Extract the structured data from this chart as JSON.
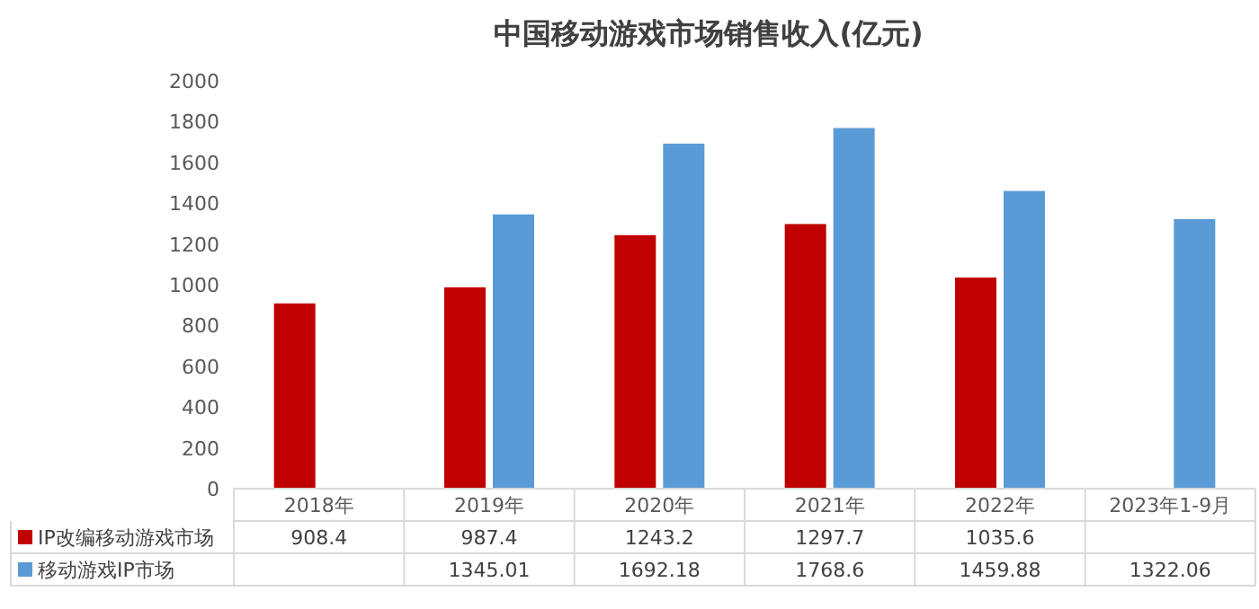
{
  "chart_data": {
    "type": "bar",
    "title": "中国移动游戏市场销售收入(亿元)",
    "categories": [
      "2018年",
      "2019年",
      "2020年",
      "2021年",
      "2022年",
      "2023年1-9月"
    ],
    "series": [
      {
        "name": "IP改编移动游戏市场",
        "color": "#c00000",
        "values": [
          908.4,
          987.4,
          1243.2,
          1297.7,
          1035.6,
          null
        ]
      },
      {
        "name": "移动游戏IP市场",
        "color": "#5b9bd5",
        "values": [
          null,
          1345.01,
          1692.18,
          1768.6,
          1459.88,
          1322.06
        ]
      }
    ],
    "ylim": [
      0,
      2000
    ],
    "yticks": [
      0,
      200,
      400,
      600,
      800,
      1000,
      1200,
      1400,
      1600,
      1800,
      2000
    ],
    "data_labels": true,
    "legend": "bottom"
  }
}
